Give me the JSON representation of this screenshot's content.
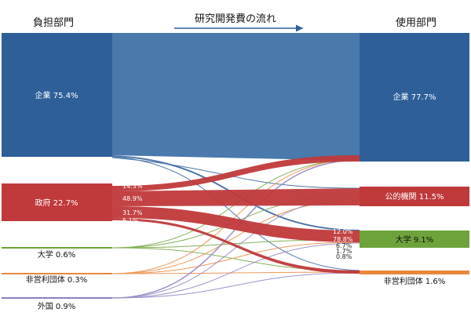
{
  "headers": {
    "left": "負担部門",
    "center": "研究開発費の流れ",
    "right": "使用部門"
  },
  "sources": [
    {
      "id": "company",
      "label": "企業",
      "value": "75.4%",
      "color": "#2e5f99"
    },
    {
      "id": "government",
      "label": "政府",
      "value": "22.7%",
      "color": "#c0393b"
    },
    {
      "id": "university",
      "label": "大学",
      "value": "0.6%",
      "color": "#6ea33b"
    },
    {
      "id": "nonprofit",
      "label": "非営利団体",
      "value": "0.3%",
      "color": "#e8873a"
    },
    {
      "id": "foreign",
      "label": "外国",
      "value": "0.9%",
      "color": "#8c7fc0"
    }
  ],
  "targets": [
    {
      "id": "company",
      "label": "企業",
      "value": "77.7%",
      "color": "#2e5f99"
    },
    {
      "id": "public",
      "label": "公的機関",
      "value": "11.5%",
      "color": "#c0393b"
    },
    {
      "id": "university",
      "label": "大学",
      "value": "9.1%",
      "color": "#6ea33b"
    },
    {
      "id": "nonprofit",
      "label": "非営利団体",
      "value": "1.6%",
      "color": "#e8873a"
    }
  ],
  "flow_labels": {
    "gov_company": "14.3%",
    "gov_public": "48.9%",
    "gov_university": "31.7%",
    "gov_nonprofit": "5.1%",
    "univ_in_1": "12.0%",
    "univ_in_2": "78.8%",
    "univ_in_3": "6.7%",
    "univ_in_4": "1.7%",
    "univ_in_5": "0.8%"
  }
}
